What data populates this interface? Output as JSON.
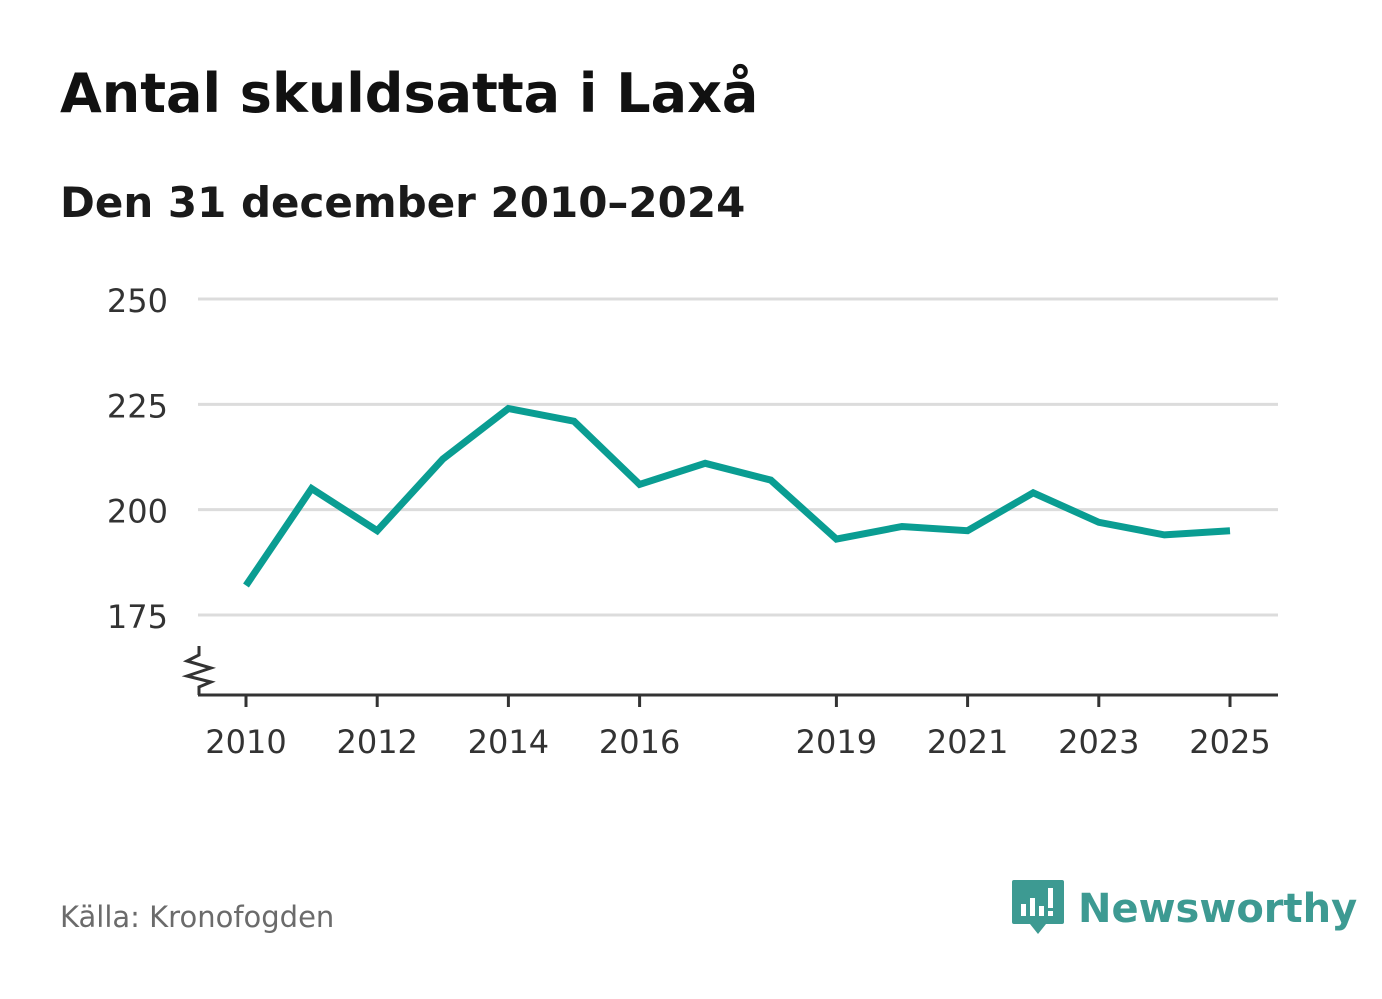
{
  "chart_data": {
    "type": "line",
    "title": "Antal skuldsatta i Laxå",
    "subtitle": "Den 31 december 2010–2024",
    "xlabel": "",
    "ylabel": "",
    "x": [
      2010,
      2011,
      2012,
      2013,
      2014,
      2015,
      2016,
      2017,
      2018,
      2019,
      2020,
      2021,
      2022,
      2023,
      2024,
      2025
    ],
    "series": [
      {
        "name": "Antal skuldsatta",
        "values": [
          182,
          205,
          195,
          212,
          224,
          221,
          206,
          211,
          207,
          193,
          196,
          195,
          204,
          197,
          194,
          195
        ]
      }
    ],
    "x_ticks": [
      "2010",
      "2012",
      "2014",
      "2016",
      "2019",
      "2021",
      "2023",
      "2025"
    ],
    "y_ticks": [
      "250",
      "225",
      "200",
      "175"
    ],
    "ylim": [
      156,
      250
    ],
    "grid": true,
    "line_color": "#0a9d92"
  },
  "source": "Källa: Kronofogden",
  "brand": {
    "name": "Newsworthy",
    "icon": "newsworthy-logo-icon",
    "color": "#3d9a92"
  }
}
